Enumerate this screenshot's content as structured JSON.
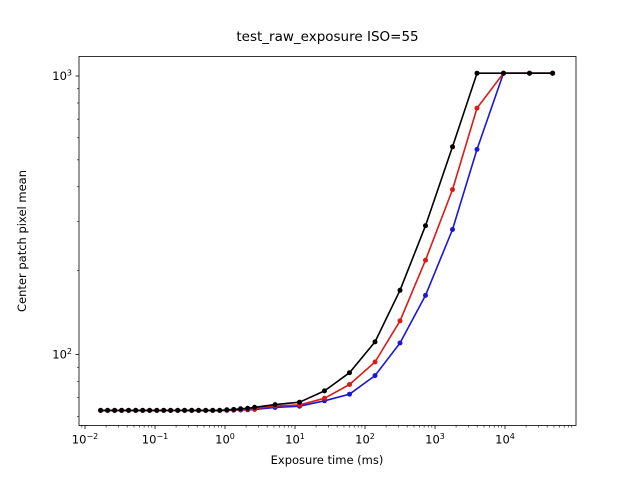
{
  "chart_data": {
    "type": "line",
    "title": "test_raw_exposure ISO=55",
    "xlabel": "Exposure time (ms)",
    "ylabel": "Center patch pixel mean",
    "x_scale": "log",
    "y_scale": "log",
    "grid": false,
    "legend": "none",
    "x_tick_exponents": [
      -2,
      -1,
      0,
      1,
      2,
      3,
      4
    ],
    "y_tick_exponents": [
      2,
      3
    ],
    "axis_limits_log": {
      "x": [
        -2.086,
        5.014
      ],
      "y": [
        1.745,
        3.07
      ]
    },
    "x": [
      0.0167,
      0.021,
      0.0265,
      0.0333,
      0.042,
      0.0529,
      0.0666,
      0.0838,
      0.106,
      0.133,
      0.167,
      0.211,
      0.265,
      0.334,
      0.42,
      0.529,
      0.666,
      0.839,
      1.06,
      1.33,
      1.67,
      2.11,
      2.65,
      5.2,
      11.6,
      26.4,
      60,
      139,
      316,
      731,
      1778,
      3981,
      9524,
      22387,
      47753
    ],
    "series": [
      {
        "name": "black",
        "color": "#000000",
        "values": [
          63,
          63,
          63,
          63,
          63,
          63,
          63,
          63,
          63,
          63,
          63,
          63,
          63,
          63,
          63,
          63,
          63,
          63,
          63.3,
          63.5,
          63.8,
          64.1,
          64.6,
          66.1,
          67.4,
          74,
          86,
          111,
          170,
          290,
          557,
          1023,
          1023,
          1023,
          1023
        ]
      },
      {
        "name": "red",
        "color": "#dc1a15",
        "values": [
          63,
          63,
          63,
          63,
          63,
          63,
          63,
          63,
          63,
          63,
          63,
          63,
          63,
          63,
          63,
          63,
          63,
          63,
          63.1,
          63.2,
          63.4,
          63.6,
          63.9,
          65.3,
          65.9,
          69.6,
          78,
          94,
          132,
          218,
          391,
          767,
          1023,
          1023,
          1023
        ]
      },
      {
        "name": "blue",
        "color": "#1c17d6",
        "values": [
          63,
          63,
          63,
          63,
          63,
          63,
          63,
          63,
          63,
          63,
          63,
          63,
          63,
          63,
          63,
          63,
          63,
          63,
          63,
          63.1,
          63.2,
          63.3,
          63.5,
          64.5,
          65.2,
          68.2,
          72,
          84,
          110,
          163,
          281,
          545,
          1023,
          1023,
          1023
        ]
      }
    ]
  }
}
